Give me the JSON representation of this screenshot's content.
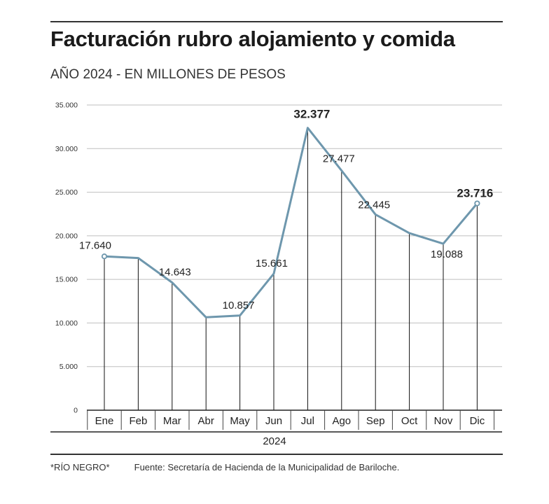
{
  "title": "Facturación rubro alojamiento y comida",
  "subtitle": "AÑO 2024 - EN MILLONES DE PESOS",
  "footer": {
    "credit": "*RÍO NEGRO*",
    "source": "Fuente: Secretaría de Hacienda de la Municipalidad de Bariloche."
  },
  "colors": {
    "line": "#6e97ad",
    "axis": "#222222",
    "grid": "#bfbfbf"
  },
  "chart_data": {
    "type": "line",
    "categories": [
      "Ene",
      "Feb",
      "Mar",
      "Abr",
      "May",
      "Jun",
      "Jul",
      "Ago",
      "Sep",
      "Oct",
      "Nov",
      "Dic"
    ],
    "values": [
      17640,
      17450,
      14643,
      10650,
      10857,
      15661,
      32377,
      27477,
      22445,
      20300,
      19088,
      23716
    ],
    "data_labels": [
      "17.640",
      "",
      "14.643",
      "",
      "10.857",
      "15.661",
      "32.377",
      "27.477",
      "22.445",
      "",
      "19.088",
      "23.716"
    ],
    "bold_labels": [
      6,
      11
    ],
    "marker_points": [
      0,
      11
    ],
    "y_ticks": [
      0,
      5000,
      10000,
      15000,
      20000,
      25000,
      30000,
      35000
    ],
    "y_tick_labels": [
      "0",
      "5.000",
      "10.000",
      "15.000",
      "20.000",
      "25.000",
      "30.000",
      "35.000"
    ],
    "ylim": [
      0,
      35000
    ],
    "xlabel": "2024",
    "grid": true
  }
}
